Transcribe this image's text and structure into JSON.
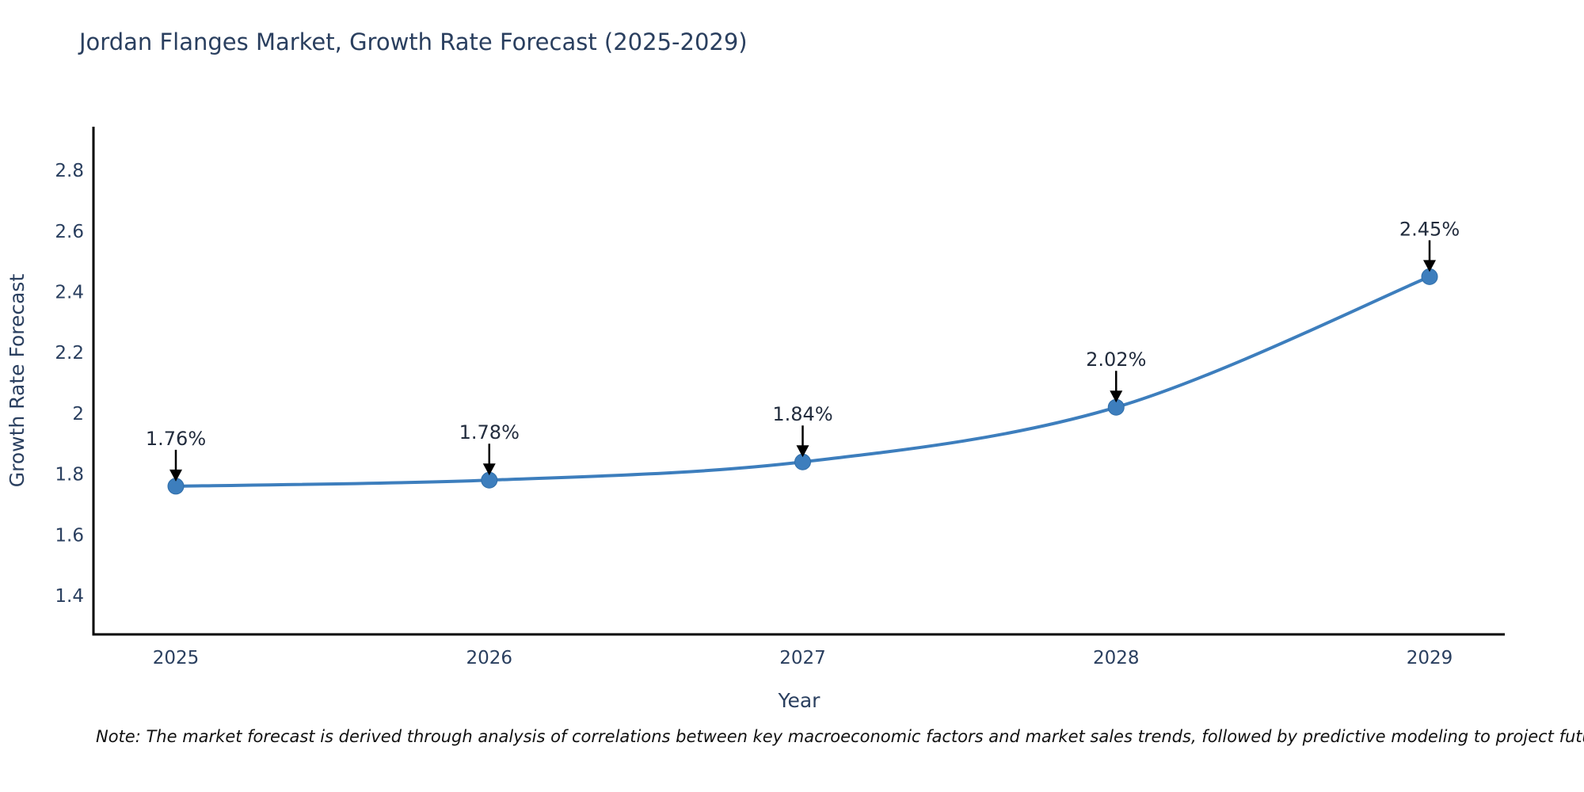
{
  "chart": {
    "note": "Note: The market forecast is derived through analysis of correlations between key macroeconomic factors and market sales trends, followed by predictive modeling to project future sales"
  },
  "chart_data": {
    "type": "line",
    "title": "Jordan Flanges Market, Growth Rate Forecast (2025-2029)",
    "xlabel": "Year",
    "ylabel": "Growth Rate Forecast",
    "categories": [
      "2025",
      "2026",
      "2027",
      "2028",
      "2029"
    ],
    "values": [
      1.76,
      1.78,
      1.84,
      2.02,
      2.45
    ],
    "point_labels": [
      "1.76%",
      "1.78%",
      "1.84%",
      "2.02%",
      "2.45%"
    ],
    "yticks": [
      1.4,
      1.6,
      1.8,
      2,
      2.2,
      2.4,
      2.6,
      2.8
    ],
    "ylim": [
      1.272,
      2.944
    ],
    "grid": false,
    "legend_position": "none",
    "line_shape": "spline",
    "line_color": "#3d7ebd",
    "marker_color": "#3d7ebd",
    "axis_color": "#000000",
    "annotation_color": "#000000",
    "title_color": "#2a3f5f"
  }
}
